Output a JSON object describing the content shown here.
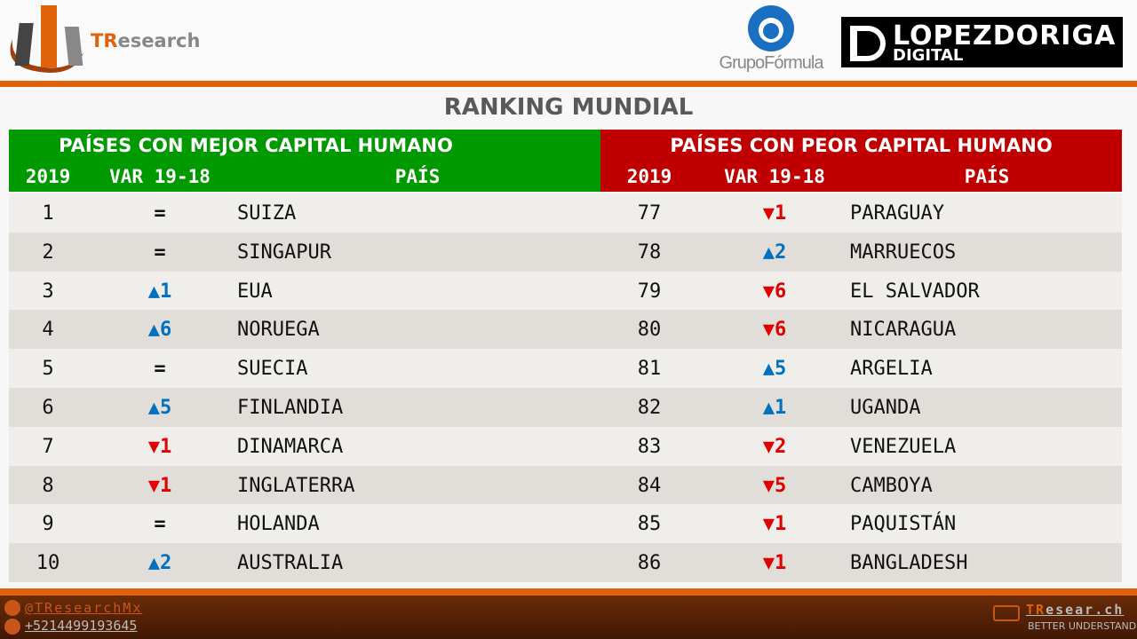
{
  "header": {
    "brand_t": "TR",
    "brand_rest": "esearch",
    "partner1": "GrupoFórmula",
    "partner2_line1": "LOPEZDORIGA",
    "partner2_line2": "DIGITAL"
  },
  "title": "RANKING MUNDIAL",
  "colors": {
    "best": "#009900",
    "worst": "#c00000",
    "up": "#0070c0",
    "down": "#e00000",
    "accent": "#e0620a"
  },
  "best": {
    "title": "PAÍSES CON MEJOR CAPITAL HUMANO",
    "col_rank": "2019",
    "col_var": "VAR 19-18",
    "col_country": "PAÍS",
    "rows": [
      {
        "rank": "1",
        "dir": "eq",
        "var": "=",
        "country": "SUIZA"
      },
      {
        "rank": "2",
        "dir": "eq",
        "var": "=",
        "country": "SINGAPUR"
      },
      {
        "rank": "3",
        "dir": "up",
        "var": "1",
        "country": "EUA"
      },
      {
        "rank": "4",
        "dir": "up",
        "var": "6",
        "country": "NORUEGA"
      },
      {
        "rank": "5",
        "dir": "eq",
        "var": "=",
        "country": "SUECIA"
      },
      {
        "rank": "6",
        "dir": "up",
        "var": "5",
        "country": "FINLANDIA"
      },
      {
        "rank": "7",
        "dir": "down",
        "var": "1",
        "country": "DINAMARCA"
      },
      {
        "rank": "8",
        "dir": "down",
        "var": "1",
        "country": "INGLATERRA"
      },
      {
        "rank": "9",
        "dir": "eq",
        "var": "=",
        "country": "HOLANDA"
      },
      {
        "rank": "10",
        "dir": "up",
        "var": "2",
        "country": "AUSTRALIA"
      }
    ]
  },
  "worst": {
    "title": "PAÍSES CON PEOR CAPITAL HUMANO",
    "col_rank": "2019",
    "col_var": "VAR 19-18",
    "col_country": "PAÍS",
    "rows": [
      {
        "rank": "77",
        "dir": "down",
        "var": "1",
        "country": "PARAGUAY"
      },
      {
        "rank": "78",
        "dir": "up",
        "var": "2",
        "country": "MARRUECOS"
      },
      {
        "rank": "79",
        "dir": "down",
        "var": "6",
        "country": "EL SALVADOR"
      },
      {
        "rank": "80",
        "dir": "down",
        "var": "6",
        "country": "NICARAGUA"
      },
      {
        "rank": "81",
        "dir": "up",
        "var": "5",
        "country": "ARGELIA"
      },
      {
        "rank": "82",
        "dir": "up",
        "var": "1",
        "country": "UGANDA"
      },
      {
        "rank": "83",
        "dir": "down",
        "var": "2",
        "country": "VENEZUELA"
      },
      {
        "rank": "84",
        "dir": "down",
        "var": "5",
        "country": "CAMBOYA"
      },
      {
        "rank": "85",
        "dir": "down",
        "var": "1",
        "country": "PAQUISTÁN"
      },
      {
        "rank": "86",
        "dir": "down",
        "var": "1",
        "country": "BANGLADESH"
      }
    ]
  },
  "footer": {
    "twitter": "@TResearchMx",
    "phone": "+5214499193645",
    "site_t": "TR",
    "site_rest": "esear.ch",
    "tagline": "BETTER UNDERSTAND"
  }
}
